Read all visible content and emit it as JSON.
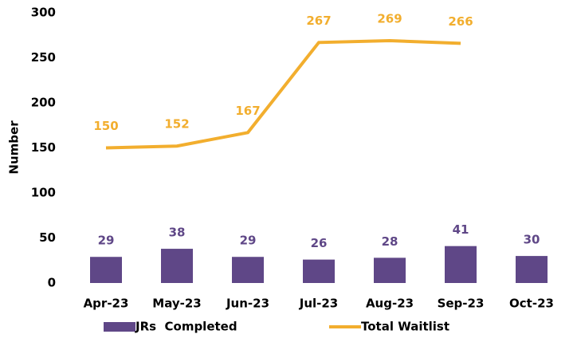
{
  "chart_data": {
    "type": "combo",
    "y_label": "Number",
    "categories": [
      "Apr-23",
      "May-23",
      "Jun-23",
      "Jul-23",
      "Aug-23",
      "Sep-23",
      "Oct-23"
    ],
    "series": [
      {
        "name": "JRs  Completed",
        "type": "bar",
        "color": "#5f4787",
        "values": [
          29,
          38,
          29,
          26,
          28,
          41,
          30
        ]
      },
      {
        "name": "Total Waitlist",
        "type": "line",
        "color": "#f2ae2e",
        "values": [
          150,
          152,
          167,
          267,
          269,
          266,
          null
        ]
      }
    ],
    "ylim": [
      0,
      300
    ],
    "yticks": [
      0,
      50,
      100,
      150,
      200,
      250,
      300
    ],
    "grid": false,
    "legend": "bottom"
  }
}
